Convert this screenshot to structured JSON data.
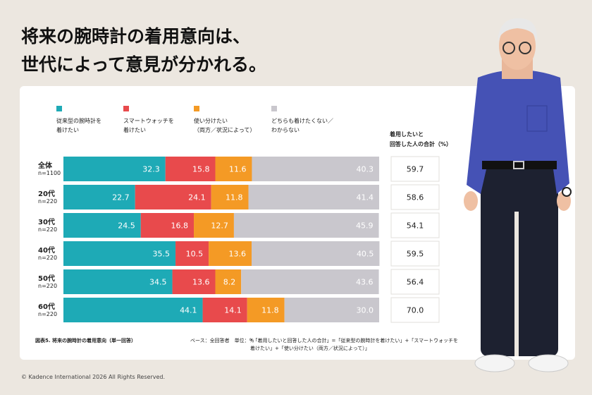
{
  "chart_data": {
    "type": "stacked-bar-horizontal",
    "title": "将来の腕時計の着用意向は、\n世代によって意見が分かれる。",
    "categories": [
      "全体",
      "20代",
      "30代",
      "40代",
      "50代",
      "60代"
    ],
    "sample_sizes": [
      "n=1100",
      "n=220",
      "n=220",
      "n=220",
      "n=220",
      "n=220"
    ],
    "xlim": [
      0,
      100
    ],
    "series": [
      {
        "name": "従来型の腕時計を\n着けたい",
        "color": "#1eaab6",
        "values": [
          32.3,
          22.7,
          24.5,
          35.5,
          34.5,
          44.1
        ]
      },
      {
        "name": "スマートウォッチを\n着けたい",
        "color": "#e84a4c",
        "values": [
          15.8,
          24.1,
          16.8,
          10.5,
          13.6,
          14.1
        ]
      },
      {
        "name": "使い分けたい\n（両方／状況によって）",
        "color": "#f49a25",
        "values": [
          11.6,
          11.8,
          12.7,
          13.6,
          8.2,
          11.8
        ]
      },
      {
        "name": "どちらも着けたくない／\nわからない",
        "color": "#c9c7cd",
        "values": [
          40.3,
          41.4,
          45.9,
          40.5,
          43.6,
          30.0
        ],
        "value_labels": [
          "40.3",
          "41.4",
          "45.9",
          "40.5",
          "43.6",
          "30.0"
        ]
      }
    ],
    "totals": {
      "label": "着用したいと\n回答した人の合計（%）",
      "values": [
        59.7,
        58.6,
        54.1,
        59.5,
        56.4,
        70.0
      ],
      "value_labels": [
        "59.7",
        "58.6",
        "54.1",
        "59.5",
        "56.4",
        "70.0"
      ]
    },
    "caption": "図表5. 将来の腕時計の着用意向（単一回答）",
    "base_note": "ベース：全回答者　単位：％",
    "footnote": "*「着用したいと回答した人の合計」=「従来型の腕時計を着けたい」+「スマートウォッチを\n着けたい」+「使い分けたい（両方／状況によって）」",
    "copyright": "© Kadence International 2026  All Rights Reserved."
  }
}
